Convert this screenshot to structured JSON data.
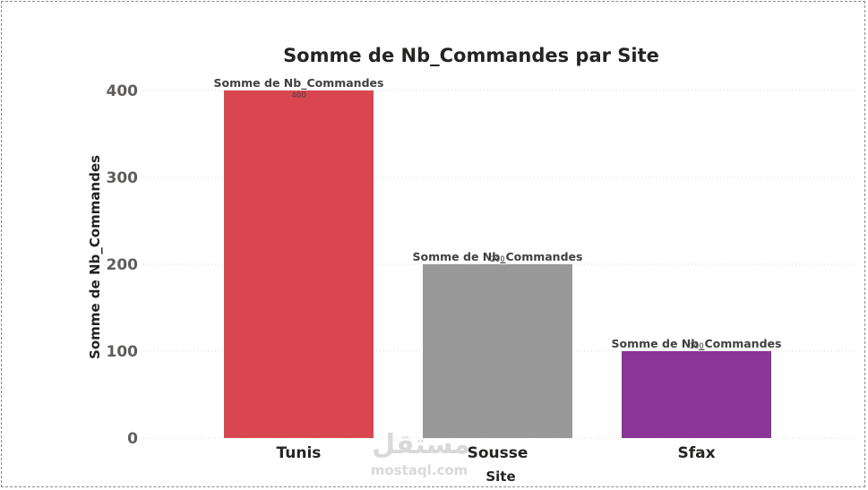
{
  "chart_data": {
    "type": "bar",
    "title": "Somme de Nb_Commandes par Site",
    "xlabel": "Site",
    "ylabel": "Somme de Nb_Commandes",
    "categories": [
      "Tunis",
      "Sousse",
      "Sfax"
    ],
    "series": [
      {
        "name": "Somme de Nb_Commandes",
        "values": [
          400,
          200,
          100
        ]
      }
    ],
    "colors": [
      "#d9464f",
      "#999999",
      "#8a3597"
    ],
    "ylim": [
      0,
      400
    ],
    "yticks": [
      0,
      100,
      200,
      300,
      400
    ],
    "grid": true,
    "data_label_title": "Somme de Nb_Commandes"
  },
  "watermark": {
    "arabic": "مستقل",
    "latin": "mostaql.com"
  }
}
